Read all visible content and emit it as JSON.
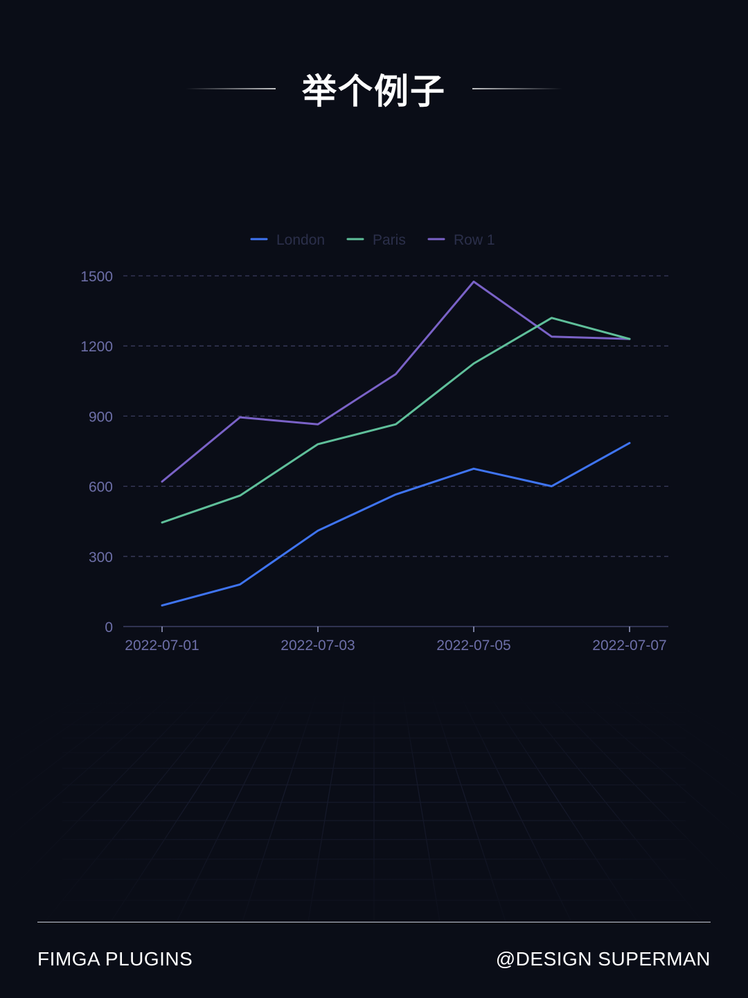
{
  "page": {
    "title": "举个例子",
    "footer_left": "FIMGA PLUGINS",
    "footer_right": "@DESIGN SUPERMAN"
  },
  "chart_data": {
    "type": "line",
    "title": "",
    "xlabel": "",
    "ylabel": "",
    "x": [
      "2022-07-01",
      "2022-07-02",
      "2022-07-03",
      "2022-07-04",
      "2022-07-05",
      "2022-07-06",
      "2022-07-07"
    ],
    "x_tick_labels": [
      "2022-07-01",
      "2022-07-03",
      "2022-07-05",
      "2022-07-07"
    ],
    "y_ticks": [
      0,
      300,
      600,
      900,
      1200,
      1500
    ],
    "ylim": [
      0,
      1500
    ],
    "grid": "horizontal dashed",
    "legend_position": "top-center",
    "series": [
      {
        "name": "London",
        "color": "#3f74f1",
        "values": [
          90,
          180,
          410,
          565,
          675,
          600,
          785
        ]
      },
      {
        "name": "Paris",
        "color": "#5fbf9a",
        "values": [
          445,
          560,
          780,
          865,
          1125,
          1320,
          1230
        ]
      },
      {
        "name": "Row 1",
        "color": "#7a62c7",
        "values": [
          620,
          895,
          865,
          1080,
          1475,
          1240,
          1230
        ]
      }
    ],
    "colors": {
      "axis_text": "#6d6fa8",
      "grid": "#3a3d5e",
      "legend_text": "#2b2f4a",
      "axis_line": "#3c4066"
    }
  }
}
